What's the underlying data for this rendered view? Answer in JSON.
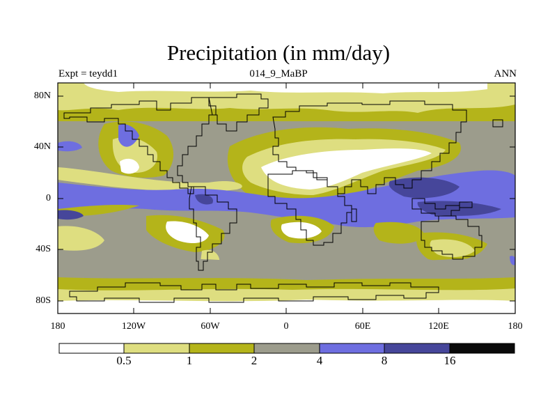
{
  "title": "Precipitation (in mm/day)",
  "subtitle_left": "Expt = teydd1",
  "subtitle_center": "014_9_MaBP",
  "subtitle_right": "ANN",
  "lat_labels": [
    "80N",
    "40N",
    "0",
    "40S",
    "80S"
  ],
  "lon_labels": [
    "180",
    "120W",
    "60W",
    "0",
    "60E",
    "120E",
    "180"
  ],
  "colorbar": {
    "labels": [
      "0.5",
      "1",
      "2",
      "4",
      "8",
      "16"
    ],
    "colors": [
      "#ffffff",
      "#dede80",
      "#b4b41a",
      "#9c9c8c",
      "#6e6ee0",
      "#46469a",
      "#0a0a0a"
    ]
  }
}
